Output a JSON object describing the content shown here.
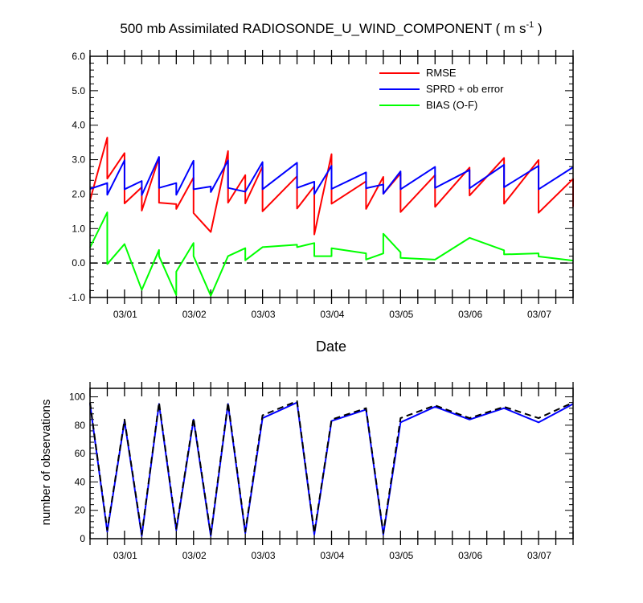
{
  "chart_data": [
    {
      "type": "line",
      "title": "500 mb Assimilated RADIOSONDE_U_WIND_COMPONENT ( m s",
      "title_superscript": "-1",
      "title_suffix": " )",
      "xlabel": "Date",
      "ylabel": "",
      "xlim": [
        0,
        7
      ],
      "ylim": [
        -1.0,
        6.0
      ],
      "yticks": [
        "-1.0",
        "0.0",
        "1.0",
        "2.0",
        "3.0",
        "4.0",
        "5.0",
        "6.0"
      ],
      "xtick_labels": [
        {
          "x": 1.0,
          "label": "03/01"
        },
        {
          "x": 2.0,
          "label": "03/02"
        },
        {
          "x": 3.0,
          "label": "03/03"
        },
        {
          "x": 4.0,
          "label": "03/04"
        },
        {
          "x": 5.0,
          "label": "03/05"
        },
        {
          "x": 6.0,
          "label": "03/06"
        },
        {
          "x": 7.0,
          "label": "03/07"
        }
      ],
      "legend_position": "top-right",
      "zero_line": true,
      "series": [
        {
          "name": "RMSE",
          "color": "#ff0000",
          "points": [
            [
              0.0,
              1.82
            ],
            [
              0.25,
              3.64
            ],
            [
              0.25,
              2.45
            ],
            [
              0.5,
              3.19
            ],
            [
              0.5,
              1.73
            ],
            [
              0.75,
              2.2
            ],
            [
              0.75,
              1.52
            ],
            [
              1.0,
              3.06
            ],
            [
              1.0,
              1.75
            ],
            [
              1.25,
              1.71
            ],
            [
              1.25,
              1.57
            ],
            [
              1.5,
              2.48
            ],
            [
              1.5,
              1.45
            ],
            [
              1.75,
              0.9
            ],
            [
              2.0,
              3.25
            ],
            [
              2.0,
              1.75
            ],
            [
              2.25,
              2.55
            ],
            [
              2.25,
              1.73
            ],
            [
              2.5,
              2.8
            ],
            [
              2.5,
              1.5
            ],
            [
              3.0,
              2.52
            ],
            [
              3.0,
              1.58
            ],
            [
              3.25,
              2.23
            ],
            [
              3.25,
              0.83
            ],
            [
              3.5,
              3.16
            ],
            [
              3.5,
              1.72
            ],
            [
              4.0,
              2.37
            ],
            [
              4.0,
              1.57
            ],
            [
              4.25,
              2.5
            ],
            [
              4.25,
              2.01
            ],
            [
              4.5,
              2.6
            ],
            [
              4.5,
              1.48
            ],
            [
              5.0,
              2.55
            ],
            [
              5.0,
              1.63
            ],
            [
              5.5,
              2.77
            ],
            [
              5.5,
              1.96
            ],
            [
              6.0,
              3.05
            ],
            [
              6.0,
              1.72
            ],
            [
              6.5,
              2.99
            ],
            [
              6.5,
              1.46
            ],
            [
              7.0,
              2.44
            ],
            [
              7.0,
              1.63
            ]
          ]
        },
        {
          "name": "SPRD + ob error",
          "color": "#0000ff",
          "points": [
            [
              0.0,
              2.15
            ],
            [
              0.25,
              2.32
            ],
            [
              0.25,
              1.98
            ],
            [
              0.5,
              2.98
            ],
            [
              0.5,
              2.14
            ],
            [
              0.75,
              2.38
            ],
            [
              0.75,
              1.97
            ],
            [
              1.0,
              3.08
            ],
            [
              1.0,
              2.18
            ],
            [
              1.25,
              2.32
            ],
            [
              1.25,
              1.98
            ],
            [
              1.5,
              2.97
            ],
            [
              1.5,
              2.14
            ],
            [
              1.75,
              2.22
            ],
            [
              1.75,
              2.06
            ],
            [
              2.0,
              2.98
            ],
            [
              2.0,
              2.18
            ],
            [
              2.25,
              2.07
            ],
            [
              2.5,
              2.93
            ],
            [
              2.5,
              2.14
            ],
            [
              3.0,
              2.91
            ],
            [
              3.0,
              2.18
            ],
            [
              3.25,
              2.36
            ],
            [
              3.25,
              2.0
            ],
            [
              3.5,
              2.82
            ],
            [
              3.5,
              2.15
            ],
            [
              4.0,
              2.63
            ],
            [
              4.0,
              2.17
            ],
            [
              4.25,
              2.28
            ],
            [
              4.25,
              2.01
            ],
            [
              4.5,
              2.66
            ],
            [
              4.5,
              2.14
            ],
            [
              5.0,
              2.79
            ],
            [
              5.0,
              2.18
            ],
            [
              5.5,
              2.7
            ],
            [
              5.5,
              2.17
            ],
            [
              6.0,
              2.85
            ],
            [
              6.0,
              2.2
            ],
            [
              6.5,
              2.82
            ],
            [
              6.5,
              2.14
            ],
            [
              7.0,
              2.78
            ]
          ]
        },
        {
          "name": "BIAS (O-F)",
          "color": "#00ff00",
          "points": [
            [
              0.0,
              0.45
            ],
            [
              0.25,
              1.47
            ],
            [
              0.25,
              -0.03
            ],
            [
              0.5,
              0.55
            ],
            [
              0.75,
              -0.78
            ],
            [
              1.0,
              0.38
            ],
            [
              1.0,
              0.2
            ],
            [
              1.25,
              -0.93
            ],
            [
              1.25,
              -0.25
            ],
            [
              1.5,
              0.58
            ],
            [
              1.5,
              0.2
            ],
            [
              1.75,
              -0.95
            ],
            [
              2.0,
              0.2
            ],
            [
              2.25,
              0.43
            ],
            [
              2.25,
              0.08
            ],
            [
              2.5,
              0.46
            ],
            [
              3.0,
              0.53
            ],
            [
              3.0,
              0.46
            ],
            [
              3.25,
              0.58
            ],
            [
              3.25,
              0.2
            ],
            [
              3.5,
              0.2
            ],
            [
              3.5,
              0.43
            ],
            [
              4.0,
              0.28
            ],
            [
              4.0,
              0.1
            ],
            [
              4.25,
              0.28
            ],
            [
              4.25,
              0.85
            ],
            [
              4.5,
              0.31
            ],
            [
              4.5,
              0.15
            ],
            [
              5.0,
              0.1
            ],
            [
              5.5,
              0.73
            ],
            [
              6.0,
              0.37
            ],
            [
              6.0,
              0.25
            ],
            [
              6.5,
              0.28
            ],
            [
              6.5,
              0.19
            ],
            [
              7.0,
              0.07
            ]
          ]
        }
      ]
    },
    {
      "type": "line",
      "title": "",
      "xlabel": "",
      "ylabel": "number of observations",
      "xlim": [
        0,
        7
      ],
      "ylim": [
        0,
        106
      ],
      "yticks": [
        "0",
        "20",
        "40",
        "60",
        "80",
        "100"
      ],
      "xtick_labels": [
        {
          "x": 1.0,
          "label": "03/01"
        },
        {
          "x": 2.0,
          "label": "03/02"
        },
        {
          "x": 3.0,
          "label": "03/03"
        },
        {
          "x": 4.0,
          "label": "03/04"
        },
        {
          "x": 5.0,
          "label": "03/05"
        },
        {
          "x": 6.0,
          "label": "03/06"
        },
        {
          "x": 7.0,
          "label": "03/07"
        }
      ],
      "series": [
        {
          "color": "#0000ff",
          "dash": false,
          "points": [
            [
              0.0,
              95
            ],
            [
              0.25,
              5
            ],
            [
              0.5,
              83
            ],
            [
              0.75,
              2
            ],
            [
              1.0,
              95
            ],
            [
              1.25,
              6
            ],
            [
              1.5,
              84
            ],
            [
              1.75,
              2
            ],
            [
              2.0,
              95
            ],
            [
              2.25,
              4
            ],
            [
              2.5,
              85
            ],
            [
              3.0,
              96
            ],
            [
              3.25,
              3
            ],
            [
              3.5,
              83
            ],
            [
              4.0,
              91
            ],
            [
              4.25,
              3
            ],
            [
              4.5,
              82
            ],
            [
              5.0,
              93
            ],
            [
              5.5,
              84
            ],
            [
              6.0,
              92
            ],
            [
              6.5,
              82
            ],
            [
              7.0,
              95
            ]
          ]
        },
        {
          "color": "#000000",
          "dash": true,
          "points": [
            [
              0.0,
              96
            ],
            [
              0.25,
              6
            ],
            [
              0.5,
              84
            ],
            [
              0.75,
              3
            ],
            [
              1.0,
              96
            ],
            [
              1.25,
              7
            ],
            [
              1.5,
              85
            ],
            [
              1.75,
              3
            ],
            [
              2.0,
              96
            ],
            [
              2.25,
              5
            ],
            [
              2.5,
              87
            ],
            [
              3.0,
              97
            ],
            [
              3.25,
              4
            ],
            [
              3.5,
              84
            ],
            [
              4.0,
              92
            ],
            [
              4.25,
              4
            ],
            [
              4.5,
              85
            ],
            [
              5.0,
              94
            ],
            [
              5.5,
              85
            ],
            [
              6.0,
              93
            ],
            [
              6.5,
              85
            ],
            [
              7.0,
              96
            ]
          ]
        }
      ]
    }
  ]
}
